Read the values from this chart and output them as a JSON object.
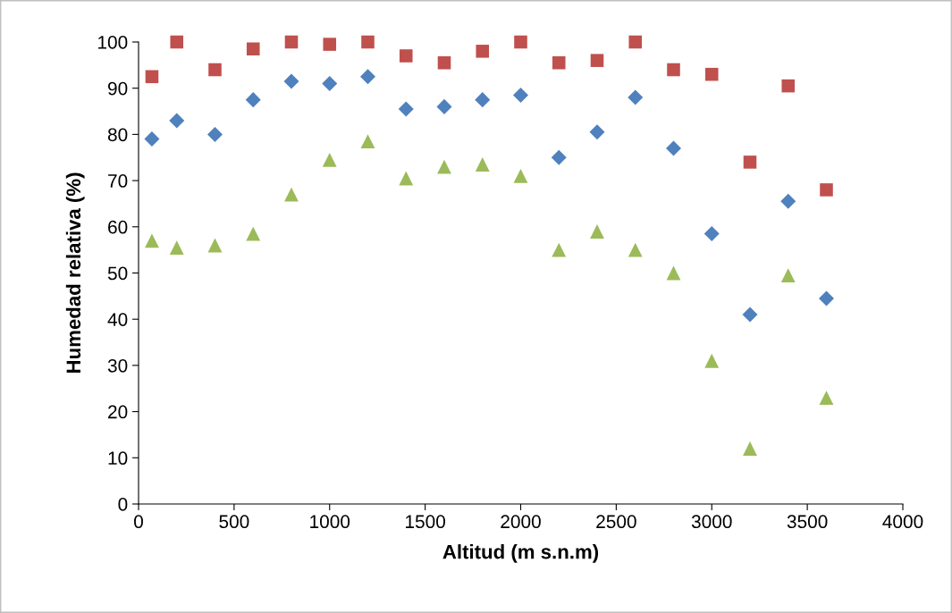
{
  "chart_data": {
    "type": "scatter",
    "xlabel": "Altitud (m s.n.m)",
    "ylabel": "Humedad relativa (%)",
    "x": [
      70,
      200,
      400,
      600,
      800,
      1000,
      1200,
      1400,
      1600,
      1800,
      2000,
      2200,
      2400,
      2600,
      2800,
      3000,
      3200,
      3400,
      3600
    ],
    "series": [
      {
        "color": "#4f81bd",
        "marker": "diamond",
        "values": [
          79,
          83,
          80,
          87.5,
          91.5,
          91,
          92.5,
          85.5,
          86,
          87.5,
          88.5,
          75,
          80.5,
          88,
          77,
          58.5,
          41,
          65.5,
          44.5
        ]
      },
      {
        "color": "#c0504d",
        "marker": "square",
        "values": [
          92.5,
          100,
          94,
          98.5,
          100,
          99.5,
          100,
          97,
          95.5,
          98,
          100,
          95.5,
          96,
          100,
          94,
          93,
          74,
          90.5,
          68
        ]
      },
      {
        "color": "#9bbb59",
        "marker": "triangle",
        "values": [
          57,
          55.5,
          56,
          58.5,
          67,
          74.5,
          78.5,
          70.5,
          73,
          73.5,
          71,
          55,
          59,
          55,
          50,
          31,
          12,
          49.5,
          23
        ]
      }
    ],
    "xlim": [
      0,
      4000
    ],
    "xticks": [
      0,
      500,
      1000,
      1500,
      2000,
      2500,
      3000,
      3500,
      4000
    ],
    "ylim": [
      0,
      100
    ],
    "yticks": [
      0,
      10,
      20,
      30,
      40,
      50,
      60,
      70,
      80,
      90,
      100
    ],
    "grid": false,
    "legend": false
  }
}
